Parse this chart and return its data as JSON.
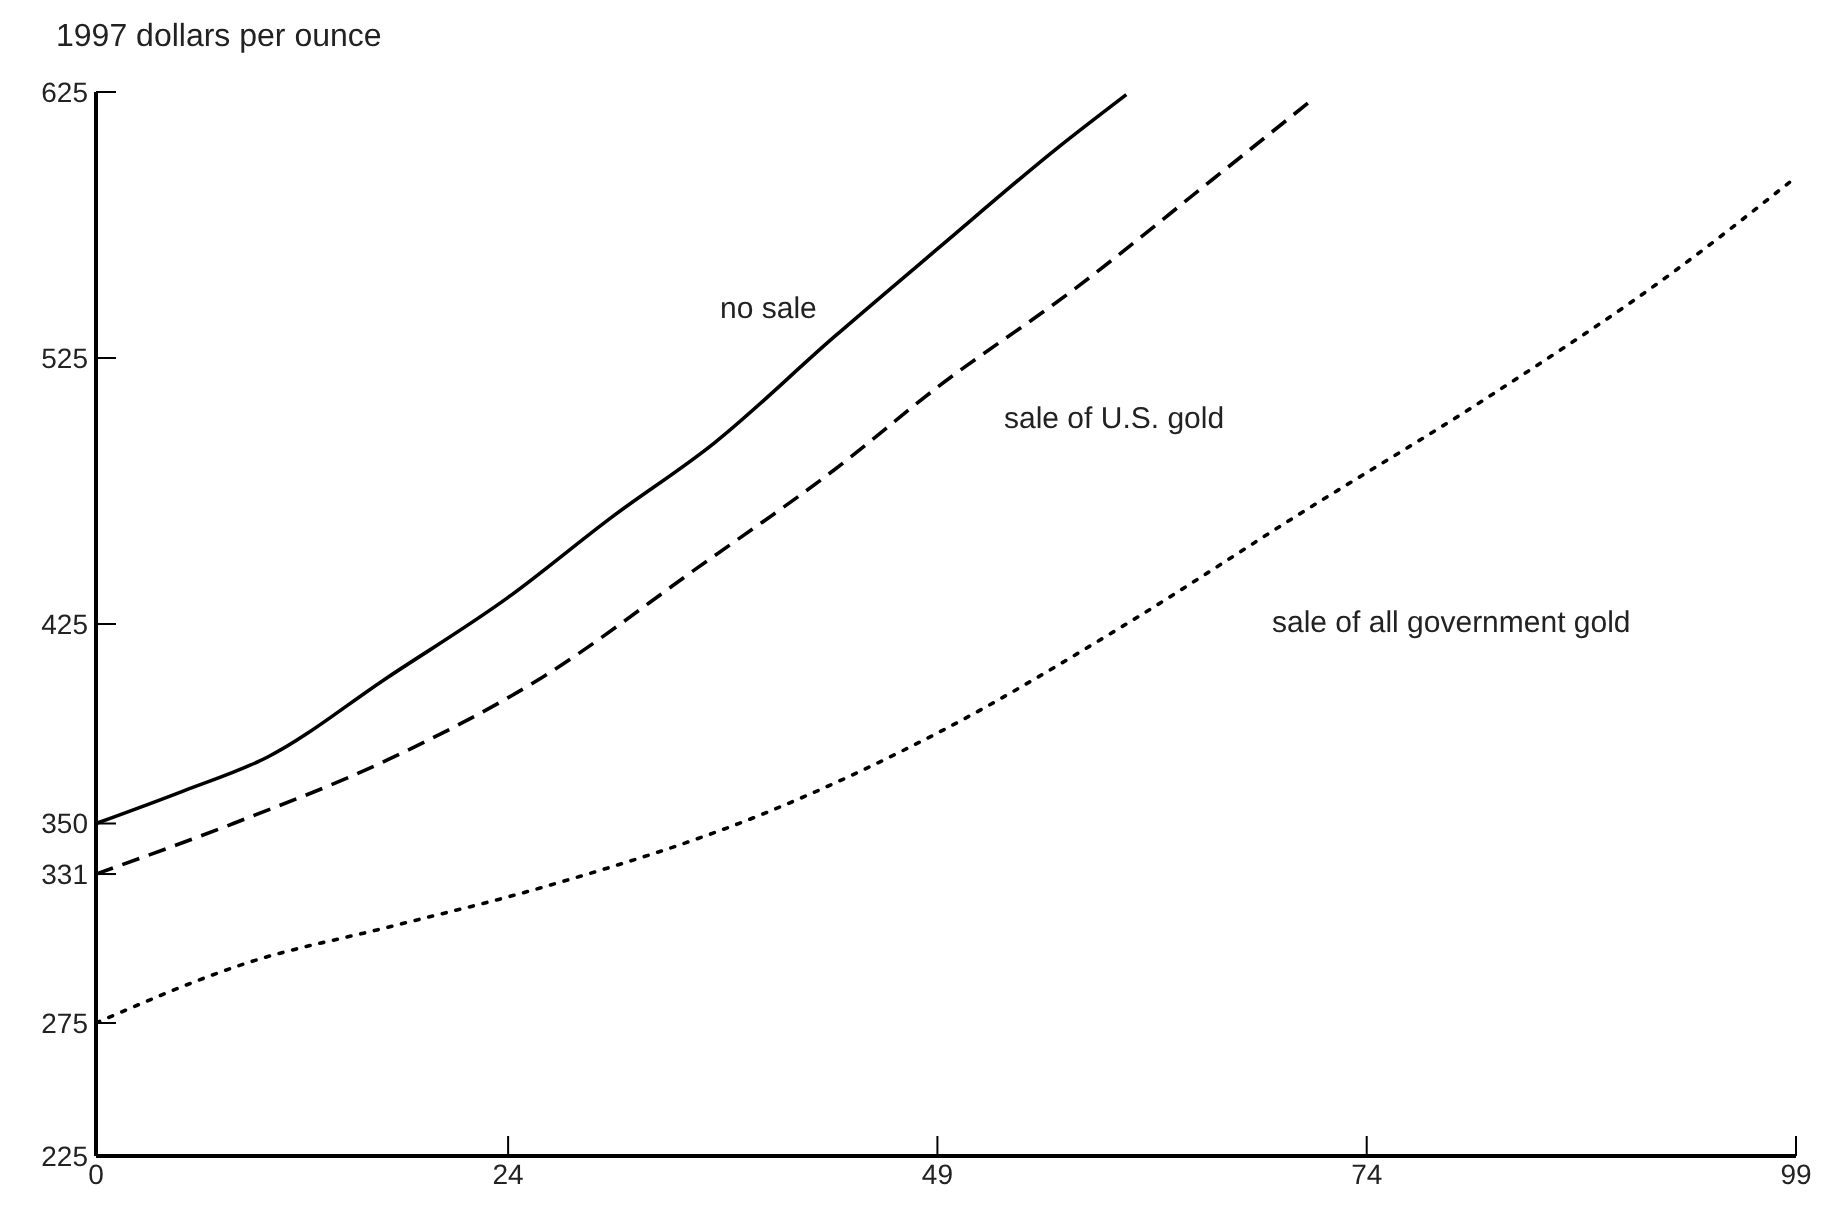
{
  "chart_data": {
    "type": "line",
    "ylabel": "1997 dollars per ounce",
    "xlim": [
      0,
      99
    ],
    "xticks": [
      0,
      24,
      49,
      74,
      99
    ],
    "ylim": [
      225,
      625
    ],
    "yticks": [
      225,
      275,
      331,
      350,
      425,
      525,
      625
    ],
    "marker": "none",
    "grid": false,
    "series": [
      {
        "name": "no sale",
        "color": "#000000",
        "line_style": "solid",
        "x": [
          0,
          5,
          10,
          17,
          24,
          30,
          36,
          43,
          49,
          56,
          60
        ],
        "values": [
          350,
          362,
          375,
          405,
          435,
          465,
          493,
          533,
          566,
          604,
          624
        ]
      },
      {
        "name": "sale of U.S. gold",
        "color": "#000000",
        "line_style": "dashed",
        "x": [
          0,
          8,
          17,
          26,
          35,
          43,
          49,
          57,
          65,
          71
        ],
        "values": [
          331,
          350,
          374,
          405,
          446,
          483,
          514,
          551,
          592,
          623
        ]
      },
      {
        "name": "sale of all government gold",
        "color": "#000000",
        "line_style": "dotted",
        "x": [
          0,
          9,
          17,
          26,
          39,
          49,
          60,
          70,
          81,
          92,
          99
        ],
        "values": [
          275,
          298,
          311,
          326,
          354,
          384,
          425,
          466,
          510,
          558,
          593
        ]
      }
    ]
  }
}
